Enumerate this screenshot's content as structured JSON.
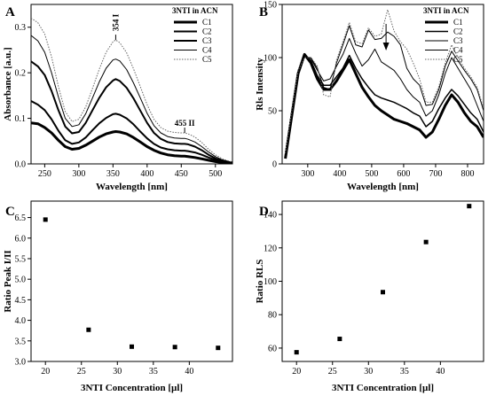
{
  "chart_data": [
    {
      "panel": "A",
      "type": "line",
      "xlabel": "Wavelength [nm]",
      "ylabel": "Absorbance [a.u.]",
      "xlim": [
        230,
        525
      ],
      "ylim": [
        0,
        0.35
      ],
      "xticks": [
        250,
        300,
        350,
        400,
        450,
        500
      ],
      "yticks": [
        0.0,
        0.1,
        0.2,
        0.3
      ],
      "legend_title": "3NTI in ACN",
      "legend_position": "top-right",
      "annotations": [
        {
          "text": "354 I",
          "x": 354
        },
        {
          "text": "455 II",
          "x": 455
        }
      ],
      "series": [
        {
          "name": "C1",
          "style": "solid",
          "width": 3,
          "x": [
            230,
            240,
            250,
            260,
            270,
            280,
            290,
            300,
            310,
            320,
            330,
            340,
            350,
            354,
            360,
            370,
            380,
            390,
            400,
            410,
            420,
            430,
            440,
            450,
            455,
            460,
            470,
            480,
            490,
            500,
            510,
            520,
            525
          ],
          "y": [
            0.09,
            0.088,
            0.08,
            0.068,
            0.052,
            0.038,
            0.032,
            0.034,
            0.041,
            0.05,
            0.059,
            0.066,
            0.07,
            0.071,
            0.07,
            0.066,
            0.058,
            0.048,
            0.038,
            0.03,
            0.024,
            0.02,
            0.018,
            0.017,
            0.017,
            0.016,
            0.014,
            0.011,
            0.008,
            0.005,
            0.003,
            0.002,
            0.002
          ]
        },
        {
          "name": "C2",
          "style": "solid",
          "width": 2,
          "x": [
            230,
            240,
            250,
            260,
            270,
            280,
            290,
            300,
            310,
            320,
            330,
            340,
            350,
            354,
            360,
            370,
            380,
            390,
            400,
            410,
            420,
            430,
            440,
            450,
            455,
            460,
            470,
            480,
            490,
            500,
            510,
            520,
            525
          ],
          "y": [
            0.138,
            0.13,
            0.118,
            0.098,
            0.073,
            0.052,
            0.044,
            0.047,
            0.058,
            0.074,
            0.089,
            0.101,
            0.109,
            0.11,
            0.108,
            0.1,
            0.087,
            0.071,
            0.056,
            0.044,
            0.036,
            0.032,
            0.03,
            0.029,
            0.029,
            0.028,
            0.025,
            0.02,
            0.014,
            0.009,
            0.005,
            0.003,
            0.002
          ]
        },
        {
          "name": "C3",
          "style": "solid",
          "width": 2,
          "x": [
            230,
            240,
            250,
            260,
            270,
            280,
            290,
            300,
            310,
            320,
            330,
            340,
            350,
            354,
            360,
            370,
            380,
            390,
            400,
            410,
            420,
            430,
            440,
            450,
            455,
            460,
            470,
            480,
            490,
            500,
            510,
            520,
            525
          ],
          "y": [
            0.225,
            0.214,
            0.195,
            0.16,
            0.118,
            0.082,
            0.067,
            0.07,
            0.09,
            0.118,
            0.145,
            0.168,
            0.183,
            0.186,
            0.182,
            0.167,
            0.144,
            0.117,
            0.09,
            0.068,
            0.055,
            0.048,
            0.045,
            0.044,
            0.044,
            0.043,
            0.038,
            0.03,
            0.02,
            0.012,
            0.007,
            0.004,
            0.003
          ]
        },
        {
          "name": "C4",
          "style": "solid",
          "width": 1,
          "x": [
            230,
            240,
            250,
            260,
            270,
            280,
            290,
            300,
            310,
            320,
            330,
            340,
            350,
            354,
            360,
            370,
            380,
            390,
            400,
            410,
            420,
            430,
            440,
            450,
            455,
            460,
            470,
            480,
            490,
            500,
            510,
            520,
            525
          ],
          "y": [
            0.282,
            0.27,
            0.245,
            0.2,
            0.147,
            0.1,
            0.082,
            0.086,
            0.11,
            0.145,
            0.18,
            0.21,
            0.228,
            0.23,
            0.226,
            0.207,
            0.178,
            0.145,
            0.111,
            0.084,
            0.068,
            0.06,
            0.057,
            0.056,
            0.056,
            0.054,
            0.048,
            0.038,
            0.026,
            0.016,
            0.009,
            0.005,
            0.004
          ]
        },
        {
          "name": "C5",
          "style": "dotted",
          "width": 1,
          "x": [
            230,
            240,
            250,
            260,
            270,
            280,
            290,
            300,
            310,
            320,
            330,
            340,
            350,
            354,
            360,
            370,
            380,
            390,
            400,
            410,
            420,
            430,
            440,
            450,
            455,
            460,
            470,
            480,
            490,
            500,
            510,
            520,
            525
          ],
          "y": [
            0.32,
            0.31,
            0.285,
            0.235,
            0.17,
            0.115,
            0.093,
            0.098,
            0.125,
            0.166,
            0.208,
            0.245,
            0.268,
            0.272,
            0.266,
            0.244,
            0.209,
            0.17,
            0.13,
            0.098,
            0.08,
            0.072,
            0.069,
            0.068,
            0.068,
            0.066,
            0.059,
            0.047,
            0.032,
            0.02,
            0.011,
            0.006,
            0.004
          ]
        }
      ]
    },
    {
      "panel": "B",
      "type": "line",
      "xlabel": "Wavelength [nm]",
      "ylabel": "Rls Intensity",
      "xlim": [
        220,
        850
      ],
      "ylim": [
        0,
        150
      ],
      "xticks": [
        300,
        400,
        500,
        600,
        700,
        800
      ],
      "yticks": [
        0,
        50,
        100,
        150
      ],
      "legend_title": "3NTI in ACN",
      "legend_position": "top-right",
      "arrow_x": 545,
      "series": [
        {
          "name": "C1",
          "style": "solid",
          "width": 3,
          "x": [
            230,
            250,
            270,
            290,
            310,
            330,
            350,
            370,
            390,
            410,
            430,
            450,
            470,
            490,
            510,
            530,
            550,
            570,
            590,
            610,
            630,
            650,
            670,
            690,
            710,
            730,
            750,
            770,
            790,
            810,
            830,
            850
          ],
          "y": [
            5,
            45,
            85,
            103,
            95,
            80,
            70,
            70,
            78,
            88,
            98,
            85,
            72,
            63,
            55,
            50,
            46,
            42,
            40,
            38,
            35,
            32,
            25,
            30,
            42,
            55,
            65,
            58,
            48,
            40,
            35,
            25
          ]
        },
        {
          "name": "C2",
          "style": "solid",
          "width": 1.5,
          "x": [
            230,
            250,
            270,
            290,
            310,
            330,
            350,
            370,
            390,
            410,
            430,
            450,
            470,
            490,
            510,
            530,
            550,
            570,
            590,
            610,
            630,
            650,
            670,
            690,
            710,
            730,
            750,
            770,
            790,
            810,
            830,
            850
          ],
          "y": [
            8,
            48,
            86,
            103,
            97,
            83,
            74,
            74,
            82,
            90,
            102,
            90,
            80,
            72,
            65,
            62,
            60,
            58,
            55,
            52,
            48,
            45,
            35,
            40,
            52,
            62,
            70,
            64,
            56,
            48,
            42,
            30
          ]
        },
        {
          "name": "C3",
          "style": "solid",
          "width": 1,
          "x": [
            230,
            250,
            270,
            290,
            310,
            330,
            350,
            370,
            390,
            410,
            430,
            450,
            470,
            490,
            510,
            530,
            550,
            570,
            590,
            610,
            630,
            650,
            670,
            690,
            710,
            730,
            750,
            770,
            790,
            810,
            830,
            850
          ],
          "y": [
            10,
            50,
            88,
            102,
            99,
            88,
            78,
            80,
            92,
            103,
            118,
            104,
            92,
            98,
            108,
            96,
            92,
            88,
            80,
            70,
            63,
            58,
            45,
            50,
            65,
            85,
            100,
            90,
            80,
            70,
            55,
            40
          ]
        },
        {
          "name": "C4",
          "style": "solid",
          "width": 1,
          "x": [
            230,
            250,
            270,
            290,
            310,
            330,
            350,
            370,
            390,
            410,
            430,
            450,
            470,
            490,
            510,
            530,
            550,
            570,
            590,
            610,
            630,
            650,
            670,
            690,
            710,
            730,
            750,
            770,
            790,
            810,
            830,
            850
          ],
          "y": [
            10,
            50,
            88,
            100,
            100,
            90,
            72,
            70,
            95,
            112,
            130,
            112,
            110,
            126,
            117,
            118,
            124,
            120,
            112,
            90,
            80,
            74,
            55,
            56,
            70,
            92,
            106,
            97,
            88,
            80,
            70,
            50
          ]
        },
        {
          "name": "C5",
          "style": "dotted",
          "width": 1,
          "x": [
            230,
            250,
            270,
            290,
            310,
            330,
            350,
            370,
            390,
            410,
            430,
            450,
            470,
            490,
            510,
            530,
            550,
            570,
            590,
            610,
            630,
            650,
            670,
            690,
            710,
            730,
            750,
            770,
            790,
            810,
            830,
            850
          ],
          "y": [
            10,
            50,
            88,
            100,
            100,
            92,
            65,
            63,
            98,
            115,
            133,
            115,
            113,
            128,
            120,
            122,
            145,
            125,
            115,
            108,
            95,
            80,
            58,
            58,
            73,
            95,
            112,
            100,
            90,
            82,
            72,
            52
          ]
        }
      ]
    },
    {
      "panel": "C",
      "type": "scatter",
      "xlabel": "3NTI Concentration [µl]",
      "ylabel": "Ratio Peak I/II",
      "xlim": [
        18,
        46
      ],
      "ylim": [
        3.0,
        6.9
      ],
      "xticks": [
        20,
        25,
        30,
        35,
        40
      ],
      "yticks": [
        3.0,
        3.5,
        4.0,
        4.5,
        5.0,
        5.5,
        6.0,
        6.5
      ],
      "x": [
        20,
        26,
        32,
        38,
        44
      ],
      "y": [
        6.45,
        3.77,
        3.36,
        3.35,
        3.33
      ]
    },
    {
      "panel": "D",
      "type": "scatter",
      "xlabel": "3NTI Concentration [µl]",
      "ylabel": "Ratio RLS",
      "xlim": [
        18,
        46
      ],
      "ylim": [
        52,
        148
      ],
      "xticks": [
        20,
        25,
        30,
        35,
        40
      ],
      "yticks": [
        60,
        80,
        100,
        120,
        140
      ],
      "x": [
        20,
        26,
        32,
        38,
        44
      ],
      "y": [
        57.5,
        65.5,
        93.5,
        123.5,
        145
      ]
    }
  ]
}
